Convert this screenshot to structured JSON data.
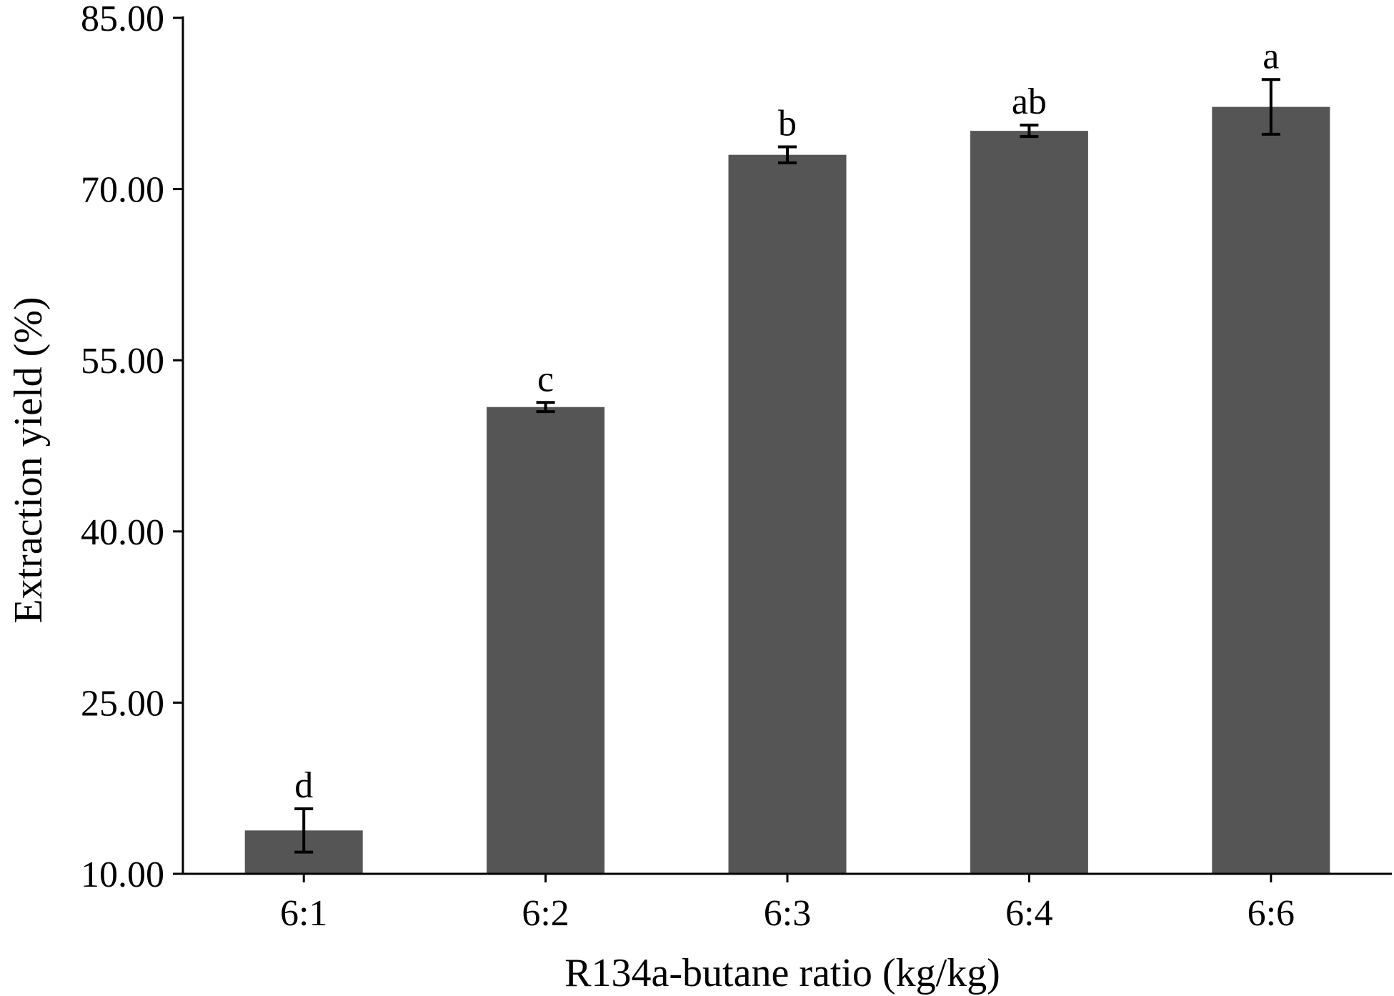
{
  "chart_data": {
    "type": "bar",
    "title": "",
    "xlabel": "R134a-butane ratio (kg/kg)",
    "ylabel": "Extraction yield (%)",
    "categories": [
      "6:1",
      "6:2",
      "6:3",
      "6:4",
      "6:6"
    ],
    "values": [
      13.8,
      50.9,
      73.0,
      75.1,
      77.2
    ],
    "errors": [
      1.9,
      0.4,
      0.7,
      0.5,
      2.4
    ],
    "significance_labels": [
      "d",
      "c",
      "b",
      "ab",
      "a"
    ],
    "ylim": [
      10,
      85
    ],
    "yticks": [
      10,
      25,
      40,
      55,
      70,
      85
    ],
    "ytick_labels": [
      "10.00",
      "25.00",
      "40.00",
      "55.00",
      "70.00",
      "85.00"
    ],
    "grid": false,
    "legend": "none",
    "colors": {
      "bar": "#555555",
      "axis": "#000000",
      "background": "#ffffff"
    }
  }
}
